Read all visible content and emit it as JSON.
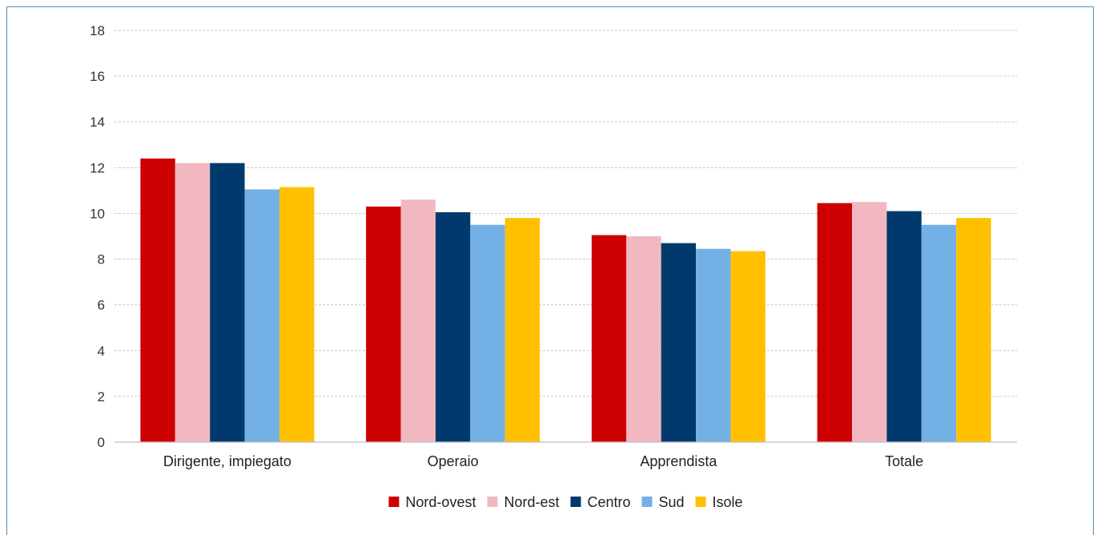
{
  "chart_data": {
    "type": "bar",
    "title": "",
    "xlabel": "",
    "ylabel": "",
    "categories": [
      "Dirigente, impiegato",
      "Operaio",
      "Apprendista",
      "Totale"
    ],
    "ylim": [
      0,
      18
    ],
    "yticks": [
      0,
      2,
      4,
      6,
      8,
      10,
      12,
      14,
      16,
      18
    ],
    "grid": true,
    "legend_position": "bottom",
    "series": [
      {
        "name": "Nord-ovest",
        "color": "#cc0000",
        "values": [
          12.4,
          10.3,
          9.05,
          10.45
        ]
      },
      {
        "name": "Nord-est",
        "color": "#f2b8c2",
        "values": [
          12.2,
          10.6,
          9.0,
          10.5
        ]
      },
      {
        "name": "Centro",
        "color": "#003a6c",
        "values": [
          12.2,
          10.05,
          8.7,
          10.1
        ]
      },
      {
        "name": "Sud",
        "color": "#73b0e6",
        "values": [
          11.05,
          9.5,
          8.45,
          9.5
        ]
      },
      {
        "name": "Isole",
        "color": "#ffc000",
        "values": [
          11.15,
          9.8,
          8.35,
          9.8
        ]
      }
    ]
  }
}
